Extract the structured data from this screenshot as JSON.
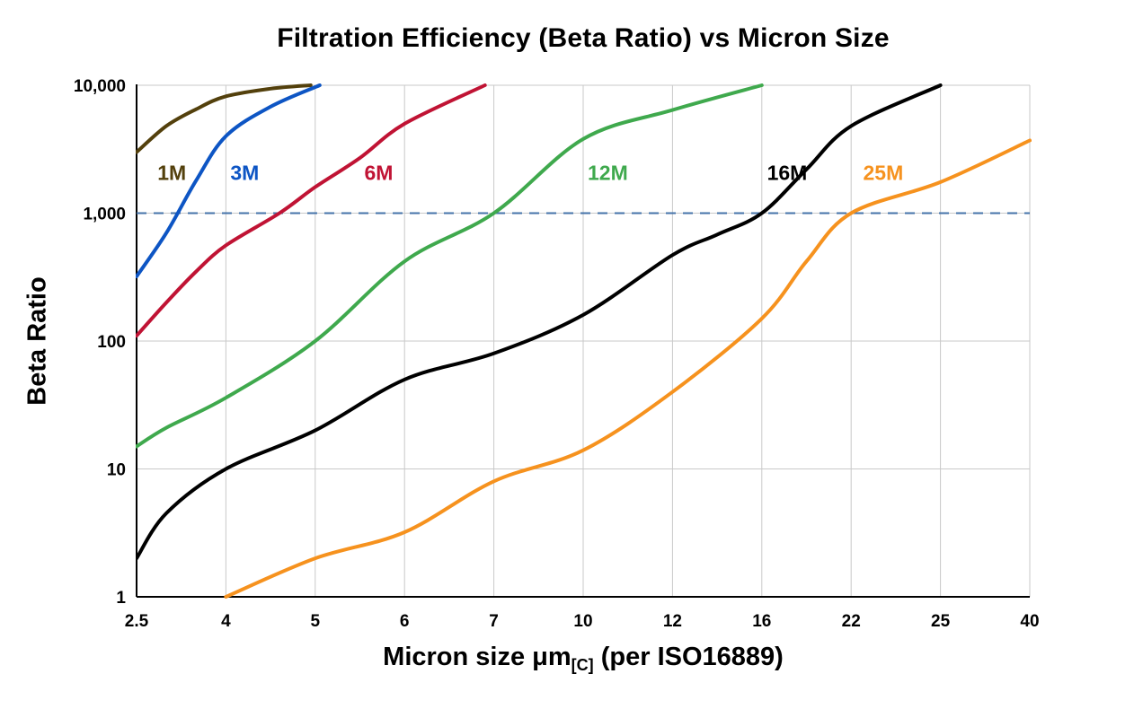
{
  "chart_data": {
    "type": "line",
    "title": "Filtration Efficiency (Beta Ratio) vs Micron Size",
    "ylabel": "Beta Ratio",
    "xlabel_prefix": "Micron size μm",
    "xlabel_subscript": "[C]",
    "xlabel_suffix": " (per ISO16889)",
    "x_scale": "ordinal-equal-spacing",
    "y_scale": "log",
    "ylim": [
      1,
      10000
    ],
    "grid": true,
    "grid_color": "#c9c9c9",
    "axis_color": "#000000",
    "x_ticks": [
      2.5,
      4,
      5,
      6,
      7,
      10,
      12,
      16,
      22,
      25,
      40
    ],
    "x_tick_labels": [
      "2.5",
      "4",
      "5",
      "6",
      "7",
      "10",
      "12",
      "16",
      "22",
      "25",
      "40"
    ],
    "y_ticks": [
      1,
      10,
      100,
      1000,
      10000
    ],
    "y_tick_labels": [
      "1",
      "10",
      "100",
      "1,000",
      "10,000"
    ],
    "reference_line": {
      "y": 1000,
      "color": "#4473aa",
      "style": "dashed"
    },
    "series": [
      {
        "name": "1M",
        "color": "#53400c",
        "label_pos": {
          "x": 2.85,
          "y": 2100
        },
        "points": [
          [
            2.5,
            3000
          ],
          [
            3,
            4800
          ],
          [
            3.5,
            6500
          ],
          [
            4,
            8200
          ],
          [
            4.5,
            9400
          ],
          [
            4.95,
            10000
          ]
        ]
      },
      {
        "name": "3M",
        "color": "#0d55c4",
        "label_pos": {
          "x": 4.05,
          "y": 2100
        },
        "points": [
          [
            2.5,
            320
          ],
          [
            3,
            700
          ],
          [
            3.5,
            1800
          ],
          [
            4,
            4000
          ],
          [
            4.5,
            6800
          ],
          [
            5.05,
            10000
          ]
        ]
      },
      {
        "name": "6M",
        "color": "#c01334",
        "label_pos": {
          "x": 5.55,
          "y": 2100
        },
        "points": [
          [
            2.5,
            110
          ],
          [
            3,
            200
          ],
          [
            3.5,
            350
          ],
          [
            4,
            560
          ],
          [
            4.6,
            1000
          ],
          [
            5,
            1600
          ],
          [
            5.5,
            2700
          ],
          [
            6,
            5000
          ],
          [
            6.9,
            10000
          ]
        ]
      },
      {
        "name": "12M",
        "color": "#3fa94d",
        "label_pos": {
          "x": 10.1,
          "y": 2100
        },
        "points": [
          [
            2.5,
            15
          ],
          [
            3,
            21
          ],
          [
            4,
            36
          ],
          [
            5,
            100
          ],
          [
            6,
            420
          ],
          [
            7,
            1000
          ],
          [
            10,
            3800
          ],
          [
            12,
            6400
          ],
          [
            16,
            10000
          ]
        ]
      },
      {
        "name": "16M",
        "color": "#000000",
        "label_pos": {
          "x": 16.35,
          "y": 2100
        },
        "points": [
          [
            2.5,
            2
          ],
          [
            3,
            4.5
          ],
          [
            4,
            10
          ],
          [
            5,
            20
          ],
          [
            6,
            50
          ],
          [
            7,
            80
          ],
          [
            10,
            160
          ],
          [
            12,
            470
          ],
          [
            14,
            680
          ],
          [
            16,
            1000
          ],
          [
            19,
            2200
          ],
          [
            22,
            4800
          ],
          [
            25,
            10000
          ]
        ]
      },
      {
        "name": "25M",
        "color": "#f6921e",
        "label_pos": {
          "x": 22.4,
          "y": 2100
        },
        "points": [
          [
            4,
            1
          ],
          [
            5,
            2
          ],
          [
            6,
            3.2
          ],
          [
            7,
            8
          ],
          [
            10,
            14
          ],
          [
            12,
            40
          ],
          [
            16,
            150
          ],
          [
            19,
            420
          ],
          [
            22,
            1000
          ],
          [
            25,
            1750
          ],
          [
            40,
            3700
          ]
        ]
      }
    ]
  }
}
